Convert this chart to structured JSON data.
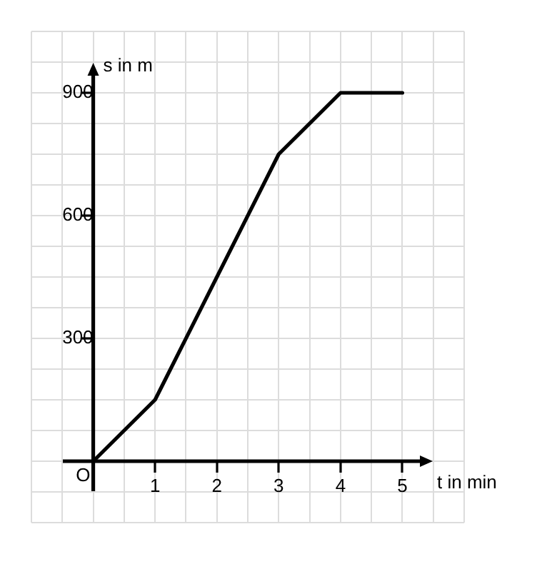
{
  "chart_data": {
    "type": "line",
    "xlabel": "t in min",
    "ylabel": "s in m",
    "x": [
      0,
      1,
      3,
      4,
      5
    ],
    "values": [
      0,
      150,
      750,
      900,
      900
    ],
    "color": "#000000",
    "xlim": [
      -1,
      6
    ],
    "ylim": [
      -150,
      1050
    ],
    "xticks": [
      {
        "value": -1,
        "label": null
      },
      {
        "value": -0.5,
        "label": null
      },
      {
        "value": 0,
        "label": null
      },
      {
        "value": 0.5,
        "label": null
      },
      1,
      {
        "value": 1.5,
        "label": null
      },
      2,
      {
        "value": 2.5,
        "label": null
      },
      3,
      {
        "value": 3.5,
        "label": null
      },
      4,
      {
        "value": 4.5,
        "label": null
      },
      5,
      {
        "value": 5.5,
        "label": null
      },
      {
        "value": 6,
        "label": null
      }
    ],
    "yticks": [
      {
        "value": -150,
        "label": null
      },
      {
        "value": -75,
        "label": null
      },
      {
        "value": 0,
        "label": null
      },
      {
        "value": 75,
        "label": null
      },
      {
        "value": 150,
        "label": null
      },
      {
        "value": 225,
        "label": null
      },
      300,
      {
        "value": 375,
        "label": null
      },
      {
        "value": 450,
        "label": null
      },
      {
        "value": 525,
        "label": null
      },
      600,
      {
        "value": 675,
        "label": null
      },
      {
        "value": 750,
        "label": null
      },
      {
        "value": 825,
        "label": null
      },
      900,
      {
        "value": 975,
        "label": null
      },
      {
        "value": 1050,
        "label": null
      }
    ],
    "grid": true,
    "legend": false,
    "marker": "none",
    "line_style": "solid",
    "annotations": [
      {
        "text": "O",
        "x": 0,
        "y": 0
      }
    ]
  }
}
